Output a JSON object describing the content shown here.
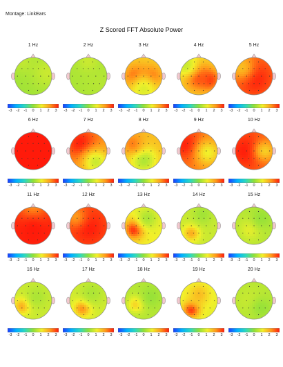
{
  "montage": "Montage: LinkEars",
  "title": "Z Scored FFT Absolute Power",
  "colorbar": {
    "tick_labels": [
      "-3",
      "-2",
      "-1",
      "0",
      "1",
      "2",
      "3"
    ],
    "range": [
      -3,
      3
    ],
    "colors": [
      "#1a3cff",
      "#00b0ff",
      "#2bd9c0",
      "#8ee03a",
      "#f2f02a",
      "#ff9a1a",
      "#ff1a0a"
    ]
  },
  "maps": [
    {
      "label": "1 Hz",
      "base": 0.2,
      "blobs": [
        [
          0.2,
          0.1,
          0.5,
          0.22
        ],
        [
          0.9,
          0.4,
          0.6,
          0.3
        ]
      ]
    },
    {
      "label": "2 Hz",
      "base": 0.3,
      "blobs": [
        [
          0.5,
          0.1,
          0.6,
          0.2
        ],
        [
          0.8,
          0.7,
          0.4,
          0.25
        ]
      ]
    },
    {
      "label": "3 Hz",
      "base": 1.4,
      "blobs": [
        [
          0.3,
          0.55,
          2.9,
          0.22
        ],
        [
          0.7,
          0.55,
          2.8,
          0.2
        ],
        [
          0.5,
          0.85,
          0.8,
          0.3
        ]
      ]
    },
    {
      "label": "4 Hz",
      "base": 1.3,
      "blobs": [
        [
          0.45,
          0.5,
          2.9,
          0.25
        ],
        [
          0.8,
          0.6,
          2.7,
          0.2
        ],
        [
          0.15,
          0.2,
          0.6,
          0.25
        ]
      ]
    },
    {
      "label": "5 Hz",
      "base": 2.3,
      "blobs": [
        [
          0.5,
          0.55,
          3.0,
          0.35
        ],
        [
          0.15,
          0.25,
          1.6,
          0.25
        ]
      ]
    },
    {
      "label": "6 Hz",
      "base": 3.0,
      "blobs": [
        [
          0.5,
          0.5,
          3.0,
          0.5
        ]
      ]
    },
    {
      "label": "7 Hz",
      "base": 2.0,
      "blobs": [
        [
          0.3,
          0.3,
          3.0,
          0.3
        ],
        [
          0.7,
          0.8,
          0.6,
          0.25
        ]
      ]
    },
    {
      "label": "8 Hz",
      "base": 1.6,
      "blobs": [
        [
          0.5,
          0.75,
          0.3,
          0.25
        ],
        [
          0.2,
          0.3,
          2.2,
          0.2
        ]
      ]
    },
    {
      "label": "9 Hz",
      "base": 2.2,
      "blobs": [
        [
          0.2,
          0.35,
          3.0,
          0.3
        ],
        [
          0.75,
          0.55,
          1.0,
          0.25
        ]
      ]
    },
    {
      "label": "10 Hz",
      "base": 2.4,
      "blobs": [
        [
          0.3,
          0.5,
          3.0,
          0.35
        ],
        [
          0.8,
          0.5,
          1.4,
          0.2
        ]
      ]
    },
    {
      "label": "11 Hz",
      "base": 2.9,
      "blobs": [
        [
          0.5,
          0.1,
          1.8,
          0.25
        ],
        [
          0.5,
          0.6,
          3.0,
          0.35
        ]
      ]
    },
    {
      "label": "12 Hz",
      "base": 2.6,
      "blobs": [
        [
          0.5,
          0.55,
          3.0,
          0.3
        ],
        [
          0.15,
          0.25,
          2.0,
          0.2
        ]
      ]
    },
    {
      "label": "13 Hz",
      "base": 1.0,
      "blobs": [
        [
          0.25,
          0.6,
          2.9,
          0.18
        ],
        [
          0.6,
          0.3,
          0.3,
          0.2
        ]
      ]
    },
    {
      "label": "14 Hz",
      "base": 0.6,
      "blobs": [
        [
          0.3,
          0.7,
          1.8,
          0.15
        ],
        [
          0.6,
          0.2,
          0.2,
          0.2
        ]
      ]
    },
    {
      "label": "15 Hz",
      "base": 0.4,
      "blobs": [
        [
          0.4,
          0.6,
          0.9,
          0.2
        ],
        [
          0.7,
          0.3,
          0.1,
          0.2
        ]
      ]
    },
    {
      "label": "16 Hz",
      "base": 0.6,
      "blobs": [
        [
          0.2,
          0.65,
          1.8,
          0.15
        ],
        [
          0.6,
          0.4,
          0.3,
          0.2
        ]
      ]
    },
    {
      "label": "17 Hz",
      "base": 0.7,
      "blobs": [
        [
          0.35,
          0.7,
          2.3,
          0.15
        ],
        [
          0.6,
          0.3,
          0.3,
          0.25
        ]
      ]
    },
    {
      "label": "18 Hz",
      "base": 0.4,
      "blobs": [
        [
          0.3,
          0.6,
          1.4,
          0.15
        ],
        [
          0.7,
          0.4,
          0.1,
          0.2
        ]
      ]
    },
    {
      "label": "19 Hz",
      "base": 0.9,
      "blobs": [
        [
          0.3,
          0.75,
          2.8,
          0.15
        ],
        [
          0.5,
          0.35,
          1.6,
          0.2
        ]
      ]
    },
    {
      "label": "20 Hz",
      "base": 0.4,
      "blobs": [
        [
          0.4,
          0.5,
          0.6,
          0.25
        ],
        [
          0.7,
          0.7,
          0.1,
          0.2
        ]
      ]
    }
  ]
}
